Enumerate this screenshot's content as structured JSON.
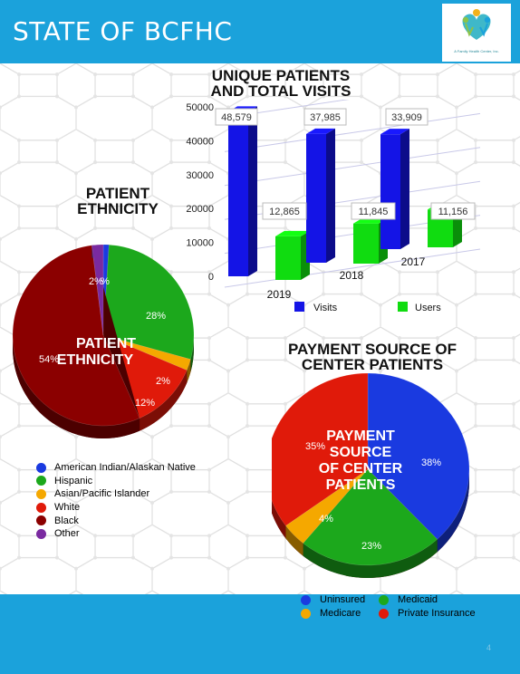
{
  "header": {
    "title": "STATE OF BCFHC",
    "logo_caption": "A Family Health Center, Inc."
  },
  "footer": {
    "page_number": "4"
  },
  "colors": {
    "header": "#1ba2db",
    "visits": "#1414e6",
    "users": "#10dc10",
    "black": "#8b0000",
    "white": "#e01a0a",
    "hispanic": "#1ca81c",
    "asian": "#f5a800",
    "other": "#7a2aa0",
    "ai_an": "#1a3ae0"
  },
  "chart_data": [
    {
      "type": "bar",
      "title": "UNIQUE PATIENTS AND TOTAL VISITS",
      "title_lines": [
        "UNIQUE PATIENTS",
        "AND TOTAL VISITS"
      ],
      "categories": [
        "2019",
        "2018",
        "2017"
      ],
      "series": [
        {
          "name": "Visits",
          "values": [
            48579,
            37985,
            33909
          ],
          "labels": [
            "48,579",
            "37,985",
            "33,909"
          ]
        },
        {
          "name": "Users",
          "values": [
            12865,
            11845,
            11156
          ],
          "labels": [
            "12,865",
            "11,845",
            "11,156"
          ]
        }
      ],
      "ylim": [
        0,
        50000
      ],
      "yticks": [
        "50000",
        "40000",
        "30000",
        "20000",
        "10000",
        "0"
      ],
      "legend": "bottom"
    },
    {
      "type": "pie",
      "title": "PATIENT ETHNICITY",
      "title_lines": [
        "PATIENT",
        "ETHNICITY"
      ],
      "center_label": [
        "PATIENT",
        "ETHNICITY"
      ],
      "slices": [
        {
          "name": "American Indian/Alaskan Native",
          "value": 1,
          "label": ""
        },
        {
          "name": "Hispanic",
          "value": 28,
          "label": "28%"
        },
        {
          "name": "Asian/Pacific Islander",
          "value": 2,
          "label": "2%"
        },
        {
          "name": "White",
          "value": 12,
          "label": "12%"
        },
        {
          "name": "Black",
          "value": 54,
          "label": "54%"
        },
        {
          "name": "Other",
          "value": 2,
          "label": "2%"
        }
      ],
      "extra_label": "%",
      "legend": "bottom-left"
    },
    {
      "type": "pie",
      "title": "PAYMENT SOURCE OF CENTER PATIENTS",
      "title_lines": [
        "PAYMENT SOURCE OF",
        "CENTER PATIENTS"
      ],
      "center_label": [
        "PAYMENT",
        "SOURCE",
        "OF CENTER",
        "PATIENTS"
      ],
      "slices": [
        {
          "name": "Uninsured",
          "value": 38,
          "label": "38%"
        },
        {
          "name": "Medicaid",
          "value": 23,
          "label": "23%"
        },
        {
          "name": "Medicare",
          "value": 4,
          "label": "4%"
        },
        {
          "name": "Private Insurance",
          "value": 35,
          "label": "35%"
        }
      ],
      "legend": "bottom"
    }
  ]
}
